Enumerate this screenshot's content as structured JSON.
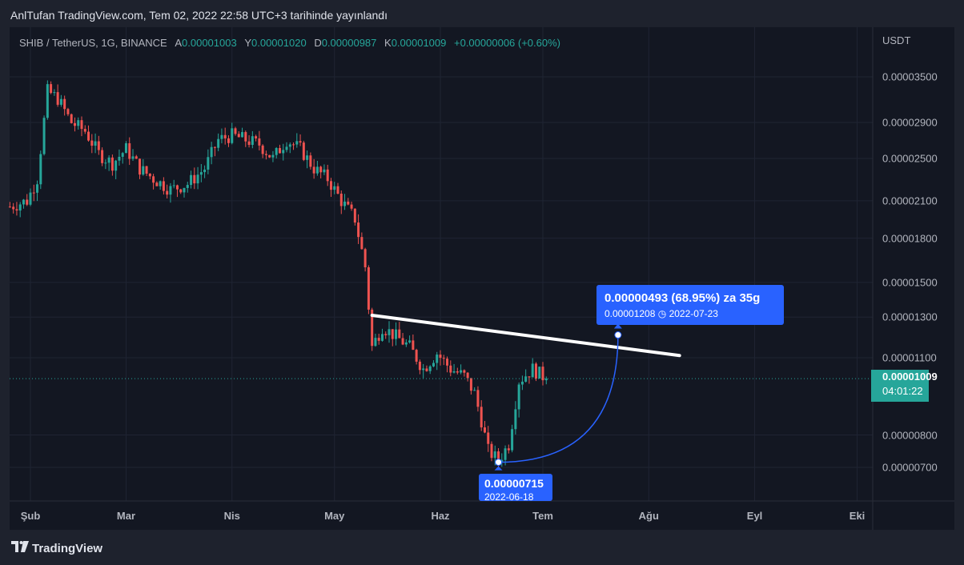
{
  "caption": "AnlTufan TradingView.com, Tem 02, 2022 22:58 UTC+3 tarihinde yayınlandı",
  "legend": {
    "symbol": "SHIB / TetherUS, 1G, BINANCE",
    "open_label": "A",
    "open": "0.00001003",
    "high_label": "Y",
    "high": "0.00001020",
    "low_label": "D",
    "low": "0.00000987",
    "close_label": "K",
    "close": "0.00001009",
    "change": "+0.00000006 (+0.60%)"
  },
  "currency": "USDT",
  "last_price": {
    "price": "0.00001009",
    "countdown": "04:01:22"
  },
  "measure_top": {
    "line1": "0.00000493 (68.95%) za 35g",
    "line2_price": "0.00001208",
    "line2_date": "2022-07-23"
  },
  "measure_bottom": {
    "price": "0.00000715",
    "date": "2022-06-18"
  },
  "brand": "TradingView",
  "colors": {
    "up": "#26a69a",
    "down": "#ef5350",
    "accent": "#2962ff",
    "background": "#131722"
  },
  "chart_data": {
    "type": "candlestick",
    "y_scale": "log",
    "y_ticks": [
      {
        "label": "0.00003500",
        "value": 3.5e-05
      },
      {
        "label": "0.00002900",
        "value": 2.9e-05
      },
      {
        "label": "0.00002500",
        "value": 2.5e-05
      },
      {
        "label": "0.00002100",
        "value": 2.1e-05
      },
      {
        "label": "0.00001800",
        "value": 1.8e-05
      },
      {
        "label": "0.00001500",
        "value": 1.5e-05
      },
      {
        "label": "0.00001300",
        "value": 1.3e-05
      },
      {
        "label": "0.00001100",
        "value": 1.1e-05
      },
      {
        "label": "0.00000800",
        "value": 8e-06
      },
      {
        "label": "0.00000700",
        "value": 7e-06
      }
    ],
    "x_ticks": [
      {
        "label": "Şub",
        "date": "2022-02-01"
      },
      {
        "label": "Mar",
        "date": "2022-03-01"
      },
      {
        "label": "Nis",
        "date": "2022-04-01"
      },
      {
        "label": "May",
        "date": "2022-05-01"
      },
      {
        "label": "Haz",
        "date": "2022-06-01"
      },
      {
        "label": "Tem",
        "date": "2022-07-01"
      },
      {
        "label": "Ağu",
        "date": "2022-08-01"
      },
      {
        "label": "Eyl",
        "date": "2022-09-01"
      },
      {
        "label": "Eki",
        "date": "2022-10-01"
      }
    ],
    "close_path": [
      [
        "2022-01-26",
        2.05e-05
      ],
      [
        "2022-01-31",
        2.1e-05
      ],
      [
        "2022-02-03",
        2.3e-05
      ],
      [
        "2022-02-06",
        3.3e-05
      ],
      [
        "2022-02-09",
        3.2e-05
      ],
      [
        "2022-02-13",
        2.9e-05
      ],
      [
        "2022-02-17",
        2.8e-05
      ],
      [
        "2022-02-21",
        2.55e-05
      ],
      [
        "2022-02-25",
        2.45e-05
      ],
      [
        "2022-03-01",
        2.6e-05
      ],
      [
        "2022-03-05",
        2.4e-05
      ],
      [
        "2022-03-09",
        2.3e-05
      ],
      [
        "2022-03-14",
        2.2e-05
      ],
      [
        "2022-03-19",
        2.25e-05
      ],
      [
        "2022-03-24",
        2.4e-05
      ],
      [
        "2022-03-28",
        2.7e-05
      ],
      [
        "2022-04-01",
        2.75e-05
      ],
      [
        "2022-04-05",
        2.7e-05
      ],
      [
        "2022-04-09",
        2.65e-05
      ],
      [
        "2022-04-13",
        2.5e-05
      ],
      [
        "2022-04-17",
        2.7e-05
      ],
      [
        "2022-04-21",
        2.6e-05
      ],
      [
        "2022-04-25",
        2.4e-05
      ],
      [
        "2022-04-29",
        2.3e-05
      ],
      [
        "2022-05-03",
        2.1e-05
      ],
      [
        "2022-05-07",
        1.95e-05
      ],
      [
        "2022-05-10",
        1.6e-05
      ],
      [
        "2022-05-12",
        1.15e-05
      ],
      [
        "2022-05-15",
        1.25e-05
      ],
      [
        "2022-05-19",
        1.2e-05
      ],
      [
        "2022-05-23",
        1.15e-05
      ],
      [
        "2022-05-27",
        1.05e-05
      ],
      [
        "2022-05-31",
        1.12e-05
      ],
      [
        "2022-06-04",
        1.05e-05
      ],
      [
        "2022-06-08",
        1.02e-05
      ],
      [
        "2022-06-11",
        9.5e-06
      ],
      [
        "2022-06-13",
        8.5e-06
      ],
      [
        "2022-06-15",
        7.5e-06
      ],
      [
        "2022-06-18",
        7.2e-06
      ],
      [
        "2022-06-21",
        7.7e-06
      ],
      [
        "2022-06-24",
        1e-05
      ],
      [
        "2022-06-28",
        1.05e-05
      ],
      [
        "2022-07-02",
        1.009e-05
      ]
    ],
    "trendline": [
      [
        "2022-05-12",
        1.31e-05
      ],
      [
        "2022-08-10",
        1.11e-05
      ]
    ],
    "measure": {
      "from": [
        "2022-06-18",
        7.15e-06
      ],
      "to": [
        "2022-07-23",
        1.208e-05
      ]
    }
  }
}
